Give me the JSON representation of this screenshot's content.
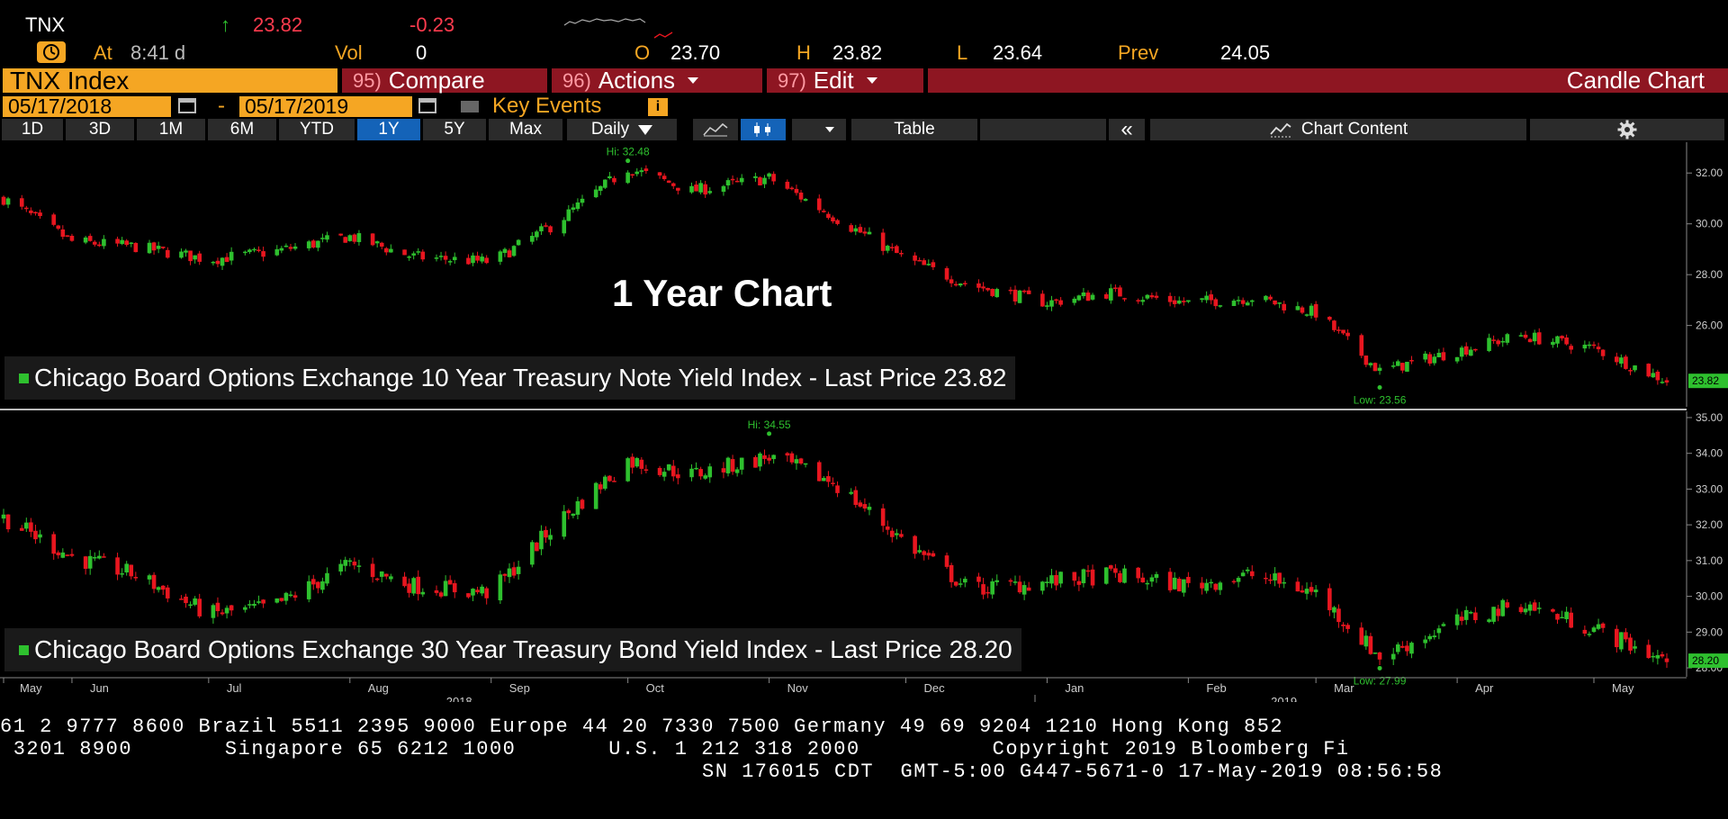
{
  "header": {
    "symbol": "TNX",
    "arrow": "↑",
    "last": "23.82",
    "change": "-0.23",
    "at_label": "At",
    "at_time": "8:41 d",
    "vol_label": "Vol",
    "vol_value": "0",
    "open_label": "O",
    "open_value": "23.70",
    "high_label": "H",
    "high_value": "23.82",
    "low_label": "L",
    "low_value": "23.64",
    "prev_label": "Prev",
    "prev_value": "24.05"
  },
  "menubar": {
    "security": "TNX Index",
    "compare_num": "95)",
    "compare": "Compare",
    "actions_num": "96)",
    "actions": "Actions",
    "edit_num": "97)",
    "edit": "Edit",
    "chart_type": "Candle Chart"
  },
  "daterange": {
    "start": "05/17/2018",
    "dash": "-",
    "end": "05/17/2019",
    "key_events": "Key Events"
  },
  "toolbar": {
    "periods": [
      "1D",
      "3D",
      "1M",
      "6M",
      "YTD",
      "1Y",
      "5Y",
      "Max"
    ],
    "active_period": "1Y",
    "frequency": "Daily",
    "table": "Table",
    "collapse": "«",
    "chart_content": "Chart Content"
  },
  "overlay_title": "1 Year Chart",
  "ticker": {
    "line1": "61 2 9777 8600 Brazil 5511 2395 9000 Europe 44 20 7330 7500 Germany 49 69 9204 1210 Hong Kong 852",
    "line2": " 3201 8900       Singapore 65 6212 1000       U.S. 1 212 318 2000          Copyright 2019 Bloomberg Fi",
    "line3": "SN 176015 CDT  GMT-5:00 G447-5671-0 17-May-2019 08:56:58"
  },
  "colors": {
    "up": "#2ec02e",
    "down": "#e8161f",
    "background": "#000000",
    "menu_red": "#8e1622",
    "orange": "#f5a623",
    "active_tab": "#1463b8"
  },
  "chart_data": [
    {
      "type": "candlestick",
      "title": "",
      "series": [
        {
          "name": "Chicago Board Options Exchange 10 Year Treasury Note Yield Index - Last Price",
          "last_price": "23.82"
        }
      ],
      "legend_text": "Chicago Board Options Exchange 10 Year Treasury Note Yield Index - Last Price",
      "last_price_label": "23.82",
      "hi_label": "Hi: 32.48",
      "low_label": "Low: 23.56",
      "hi": 32.48,
      "low": 23.56,
      "ylim": [
        22.8,
        33.0
      ],
      "yticks": [
        "32.00",
        "30.00",
        "28.00",
        "26.00"
      ],
      "ytick_values": [
        32,
        30,
        28,
        26
      ],
      "x_start": "2018-05-17",
      "x_end": "2019-05-17",
      "dates": [
        "2018-05-17",
        "2018-06-01",
        "2018-06-15",
        "2018-07-01",
        "2018-07-15",
        "2018-08-01",
        "2018-08-15",
        "2018-09-01",
        "2018-09-15",
        "2018-10-01",
        "2018-10-15",
        "2018-11-01",
        "2018-11-15",
        "2018-12-01",
        "2018-12-15",
        "2019-01-01",
        "2019-01-15",
        "2019-02-01",
        "2019-02-15",
        "2019-03-01",
        "2019-03-15",
        "2019-04-01",
        "2019-04-15",
        "2019-05-01",
        "2019-05-17"
      ],
      "values": [
        31.0,
        29.3,
        29.1,
        28.6,
        28.9,
        29.5,
        28.7,
        28.5,
        30.0,
        32.2,
        31.3,
        31.8,
        30.3,
        28.6,
        27.6,
        26.9,
        27.3,
        26.9,
        27.1,
        26.5,
        24.2,
        25.0,
        25.6,
        25.1,
        23.82
      ]
    },
    {
      "type": "candlestick",
      "title": "",
      "series": [
        {
          "name": "Chicago Board Options Exchange 30 Year Treasury Bond Yield Index - Last Price",
          "last_price": "28.20"
        }
      ],
      "legend_text": "Chicago Board Options Exchange 30 Year Treasury Bond Yield Index - Last Price",
      "last_price_label": "28.20",
      "hi_label": "Hi: 34.55",
      "low_label": "Low: 27.99",
      "hi": 34.55,
      "low": 27.99,
      "ylim": [
        27.8,
        35.1
      ],
      "yticks": [
        "35.00",
        "34.00",
        "33.00",
        "32.00",
        "31.00",
        "30.00",
        "29.00",
        "28.00"
      ],
      "ytick_values": [
        35,
        34,
        33,
        32,
        31,
        30,
        29,
        28
      ],
      "x_start": "2018-05-17",
      "x_end": "2019-05-17",
      "dates": [
        "2018-05-17",
        "2018-06-01",
        "2018-06-15",
        "2018-07-01",
        "2018-07-15",
        "2018-08-01",
        "2018-08-15",
        "2018-09-01",
        "2018-09-15",
        "2018-10-01",
        "2018-10-15",
        "2018-11-01",
        "2018-11-15",
        "2018-12-01",
        "2018-12-15",
        "2019-01-01",
        "2019-01-15",
        "2019-02-01",
        "2019-02-15",
        "2019-03-01",
        "2019-03-15",
        "2019-04-01",
        "2019-04-15",
        "2019-05-01",
        "2019-05-17"
      ],
      "values": [
        32.2,
        31.1,
        30.6,
        29.5,
        29.7,
        30.9,
        30.3,
        30.1,
        32.0,
        33.8,
        33.4,
        33.9,
        33.2,
        31.5,
        30.2,
        30.4,
        30.6,
        30.3,
        30.6,
        30.1,
        28.3,
        29.3,
        29.8,
        29.1,
        28.2
      ]
    }
  ],
  "xaxis": {
    "months": [
      "May",
      "Jun",
      "Jul",
      "Aug",
      "Sep",
      "Oct",
      "Nov",
      "Dec",
      "Jan",
      "Feb",
      "Mar",
      "Apr",
      "May"
    ],
    "month_dates": [
      "2018-05-17",
      "2018-06-01",
      "2018-07-01",
      "2018-08-01",
      "2018-09-01",
      "2018-10-01",
      "2018-11-01",
      "2018-12-01",
      "2019-01-01",
      "2019-02-01",
      "2019-03-01",
      "2019-04-01",
      "2019-05-01"
    ],
    "years": [
      "2018",
      "2019"
    ],
    "year_dates": [
      "2018-09-01",
      "2019-03-01"
    ]
  }
}
